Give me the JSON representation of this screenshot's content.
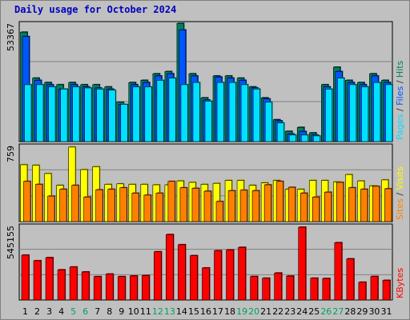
{
  "title": "Daily usage for October 2024",
  "chart_data": [
    {
      "type": "bar",
      "categories": [
        "1",
        "2",
        "3",
        "4",
        "5",
        "6",
        "7",
        "8",
        "9",
        "10",
        "11",
        "12",
        "13",
        "14",
        "15",
        "16",
        "17",
        "18",
        "19",
        "20",
        "21",
        "22",
        "23",
        "24",
        "25",
        "26",
        "27",
        "28",
        "29",
        "30",
        "31"
      ],
      "weekend_days": [
        "5",
        "6",
        "12",
        "13",
        "19",
        "20",
        "26",
        "27"
      ],
      "ymax_label": "53367",
      "ylim": [
        0,
        53367
      ],
      "axis_label_parts": [
        {
          "text": "Pages",
          "color": "#00e0ff"
        },
        {
          "text": " / ",
          "color": "#333333"
        },
        {
          "text": "Files",
          "color": "#0055ff"
        },
        {
          "text": " / ",
          "color": "#333333"
        },
        {
          "text": "Hits",
          "color": "#008060"
        }
      ],
      "series": [
        {
          "name": "Hits",
          "color": "#008060",
          "values": [
            50000,
            29000,
            27000,
            26000,
            27000,
            26000,
            26000,
            25000,
            18000,
            27000,
            28000,
            31000,
            32000,
            54000,
            31000,
            20000,
            30000,
            30000,
            29000,
            25000,
            20000,
            10000,
            4700,
            6500,
            4000,
            26000,
            34000,
            28000,
            27000,
            31000,
            28000
          ]
        },
        {
          "name": "Files",
          "color": "#0055ff",
          "values": [
            48000,
            28000,
            26000,
            24000,
            26000,
            25000,
            24500,
            24000,
            17000,
            26000,
            27000,
            30000,
            31000,
            51000,
            30000,
            19000,
            29500,
            29000,
            28000,
            24500,
            19500,
            9500,
            3500,
            4600,
            3000,
            25000,
            32000,
            27000,
            26000,
            30000,
            27000
          ]
        },
        {
          "name": "Pages",
          "color": "#00e0ff",
          "values": [
            26000,
            26000,
            25000,
            24000,
            25000,
            24500,
            24000,
            23500,
            17000,
            25000,
            25000,
            28000,
            29000,
            26000,
            27000,
            18500,
            27000,
            27000,
            26000,
            24000,
            18000,
            8500,
            3000,
            3000,
            2600,
            24000,
            29000,
            26000,
            25000,
            27000,
            26000
          ]
        }
      ]
    },
    {
      "type": "bar",
      "categories": [
        "1",
        "2",
        "3",
        "4",
        "5",
        "6",
        "7",
        "8",
        "9",
        "10",
        "11",
        "12",
        "13",
        "14",
        "15",
        "16",
        "17",
        "18",
        "19",
        "20",
        "21",
        "22",
        "23",
        "24",
        "25",
        "26",
        "27",
        "28",
        "29",
        "30",
        "31"
      ],
      "ymax_label": "759",
      "ylim": [
        0,
        759
      ],
      "axis_label_parts": [
        {
          "text": "Sites",
          "color": "#ff8000"
        },
        {
          "text": " / ",
          "color": "#333333"
        },
        {
          "text": "Visits",
          "color": "#ffff00"
        }
      ],
      "series": [
        {
          "name": "Visits",
          "color": "#ffff00",
          "values": [
            580,
            575,
            490,
            370,
            760,
            530,
            560,
            380,
            385,
            380,
            380,
            375,
            375,
            415,
            400,
            380,
            390,
            420,
            420,
            370,
            395,
            420,
            330,
            330,
            420,
            420,
            405,
            480,
            415,
            365,
            425
          ]
        },
        {
          "name": "Sites",
          "color": "#ff8000",
          "values": [
            410,
            380,
            260,
            330,
            370,
            250,
            325,
            330,
            345,
            290,
            270,
            290,
            410,
            345,
            340,
            310,
            205,
            315,
            320,
            315,
            375,
            410,
            350,
            290,
            250,
            300,
            400,
            345,
            330,
            360,
            335
          ]
        }
      ]
    },
    {
      "type": "bar",
      "categories": [
        "1",
        "2",
        "3",
        "4",
        "5",
        "6",
        "7",
        "8",
        "9",
        "10",
        "11",
        "12",
        "13",
        "14",
        "15",
        "16",
        "17",
        "18",
        "19",
        "20",
        "21",
        "22",
        "23",
        "24",
        "25",
        "26",
        "27",
        "28",
        "29",
        "30",
        "31"
      ],
      "ymax_label": "545155",
      "ylim": [
        0,
        545155
      ],
      "axis_label_parts": [
        {
          "text": "KBytes",
          "color": "#ff0000"
        }
      ],
      "series": [
        {
          "name": "KBytes",
          "color": "#ff0000",
          "values": [
            336000,
            294000,
            317000,
            226000,
            247000,
            210000,
            175000,
            194000,
            175000,
            180000,
            183000,
            361000,
            490000,
            414000,
            332000,
            240000,
            369000,
            375000,
            394000,
            176000,
            163000,
            202000,
            179000,
            545000,
            163000,
            161000,
            429000,
            308000,
            133000,
            176000,
            147000
          ]
        }
      ]
    }
  ]
}
